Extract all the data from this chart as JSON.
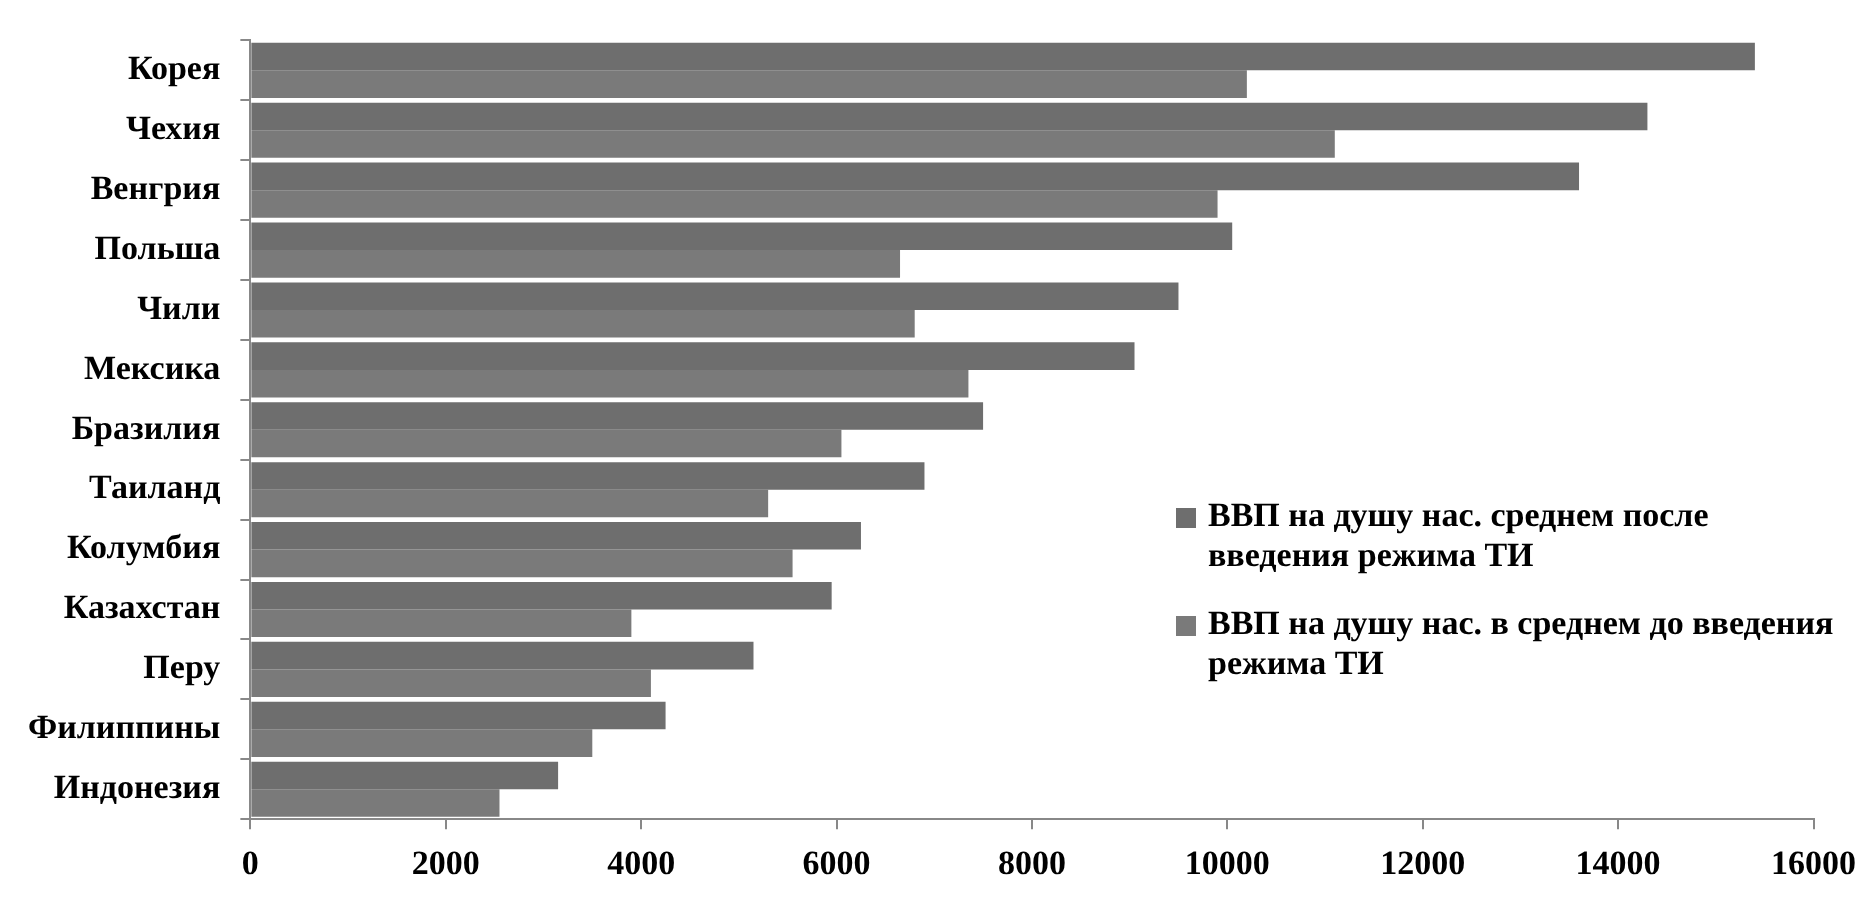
{
  "chart_data": {
    "type": "bar",
    "orientation": "horizontal",
    "categories": [
      "Корея",
      "Чехия",
      "Венгрия",
      "Польша",
      "Чили",
      "Мексика",
      "Бразилия",
      "Таиланд",
      "Колумбия",
      "Казахстан",
      "Перу",
      "Филиппины",
      "Индонезия"
    ],
    "series": [
      {
        "name": "ВВП на душу нас. среднем после введения режима ТИ",
        "color": "#6e6e6e",
        "values": [
          15400,
          14300,
          13600,
          10050,
          9500,
          9050,
          7500,
          6900,
          6250,
          5950,
          5150,
          4250,
          3150
        ]
      },
      {
        "name": "ВВП на душу нас. в среднем до введения режима ТИ",
        "color": "#7a7a7a",
        "values": [
          10200,
          11100,
          9900,
          6650,
          6800,
          7350,
          6050,
          5300,
          5550,
          3900,
          4100,
          3500,
          2550
        ]
      }
    ],
    "xlim": [
      0,
      16000
    ],
    "xticks": [
      0,
      2000,
      4000,
      6000,
      8000,
      10000,
      12000,
      14000,
      16000
    ],
    "grid": false,
    "legend": "right"
  }
}
